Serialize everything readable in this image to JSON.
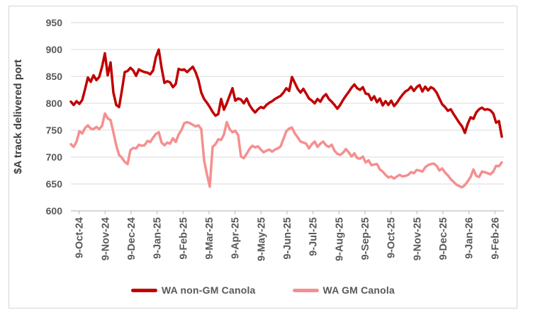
{
  "chart_data": {
    "type": "line",
    "title": "",
    "xlabel": "",
    "ylabel": "$A track delivered port",
    "ylim": [
      600,
      950
    ],
    "y_ticks": [
      950,
      900,
      850,
      800,
      750,
      700,
      650,
      600
    ],
    "x_ticks": [
      "9-Oct-24",
      "9-Nov-24",
      "9-Dec-24",
      "9-Jan-25",
      "9-Feb-25",
      "9-Mar-25",
      "9-Apr-25",
      "9-May-25",
      "9-Jun-25",
      "9-Jul-25",
      "9-Aug-25",
      "9-Sep-25",
      "9-Oct-25",
      "9-Nov-25",
      "9-Dec-25",
      "9-Jan-26",
      "9-Feb-26"
    ],
    "grid": "horizontal",
    "legend_position": "bottom",
    "series": [
      {
        "name": "WA non-GM Canola",
        "color": "#C00000",
        "values": [
          803,
          797,
          804,
          799,
          806,
          826,
          848,
          840,
          852,
          843,
          849,
          868,
          893,
          852,
          876,
          820,
          797,
          793,
          824,
          858,
          860,
          866,
          861,
          851,
          863,
          860,
          858,
          857,
          854,
          861,
          886,
          900,
          866,
          838,
          841,
          839,
          830,
          836,
          864,
          862,
          863,
          858,
          863,
          868,
          858,
          843,
          820,
          808,
          801,
          793,
          784,
          777,
          780,
          808,
          788,
          800,
          814,
          828,
          805,
          809,
          807,
          800,
          809,
          797,
          789,
          783,
          789,
          793,
          791,
          797,
          801,
          804,
          808,
          811,
          814,
          820,
          828,
          823,
          849,
          838,
          827,
          820,
          827,
          818,
          809,
          805,
          800,
          808,
          803,
          812,
          817,
          808,
          803,
          797,
          790,
          797,
          806,
          814,
          821,
          829,
          835,
          828,
          825,
          830,
          818,
          817,
          806,
          813,
          802,
          809,
          796,
          804,
          797,
          805,
          795,
          801,
          809,
          816,
          822,
          825,
          831,
          823,
          830,
          834,
          822,
          831,
          824,
          830,
          827,
          820,
          809,
          798,
          793,
          786,
          789,
          780,
          772,
          764,
          757,
          745,
          762,
          774,
          771,
          783,
          789,
          792,
          788,
          789,
          787,
          781,
          764,
          767,
          738
        ]
      },
      {
        "name": "WA GM Canola",
        "color": "#F58F8F",
        "values": [
          724,
          719,
          729,
          748,
          744,
          754,
          759,
          753,
          752,
          756,
          752,
          758,
          781,
          772,
          769,
          746,
          722,
          704,
          699,
          691,
          687,
          713,
          717,
          716,
          723,
          721,
          722,
          730,
          728,
          736,
          743,
          746,
          727,
          722,
          727,
          725,
          735,
          728,
          742,
          750,
          763,
          765,
          763,
          760,
          757,
          759,
          752,
          694,
          668,
          645,
          719,
          724,
          733,
          732,
          742,
          765,
          752,
          746,
          749,
          741,
          701,
          698,
          706,
          715,
          721,
          718,
          720,
          714,
          709,
          712,
          714,
          710,
          714,
          716,
          720,
          734,
          748,
          753,
          755,
          744,
          737,
          729,
          727,
          725,
          716,
          724,
          729,
          719,
          725,
          729,
          722,
          719,
          723,
          712,
          706,
          704,
          708,
          715,
          709,
          701,
          707,
          698,
          697,
          701,
          690,
          694,
          685,
          686,
          687,
          677,
          673,
          667,
          662,
          664,
          660,
          664,
          667,
          664,
          665,
          667,
          672,
          670,
          676,
          675,
          673,
          681,
          685,
          687,
          688,
          684,
          675,
          679,
          671,
          666,
          659,
          654,
          649,
          646,
          644,
          648,
          655,
          663,
          677,
          665,
          663,
          673,
          672,
          670,
          668,
          673,
          684,
          683,
          690
        ]
      }
    ]
  },
  "colors": {
    "grid": "#D9D9D9",
    "axis_line": "#BFBFBF",
    "tick_text": "#595959",
    "axis_title_text": "#404040",
    "frame_border": "#D6D6D6"
  }
}
